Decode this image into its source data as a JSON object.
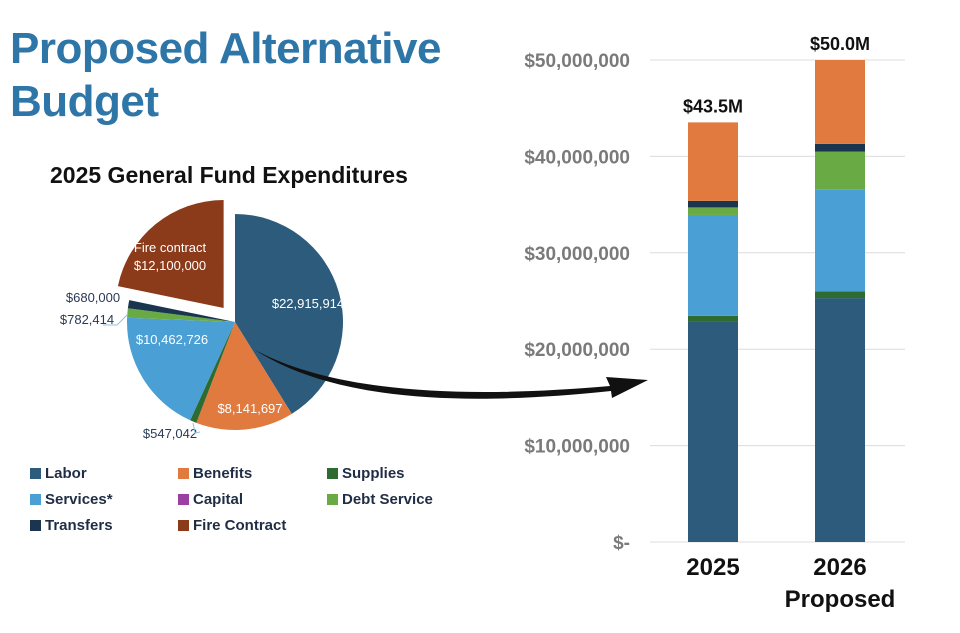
{
  "title_line1": "Proposed Alternative",
  "title_line2": "Budget",
  "chart_data": [
    {
      "type": "pie",
      "title": "2025 General Fund Expenditures",
      "slices": [
        {
          "name": "Labor",
          "value": 22915914,
          "label": "$22,915,914",
          "color": "#2c5b7c"
        },
        {
          "name": "Benefits",
          "value": 8141697,
          "label": "$8,141,697",
          "color": "#e07a3f"
        },
        {
          "name": "Supplies",
          "value": 547042,
          "label": "$547,042",
          "color": "#2e6b30"
        },
        {
          "name": "Services*",
          "value": 10462726,
          "label": "$10,462,726",
          "color": "#4a9fd5"
        },
        {
          "name": "Capital",
          "value": 0,
          "label": "",
          "color": "#9b3fa0"
        },
        {
          "name": "Debt Service",
          "value": 782414,
          "label": "$782,414",
          "color": "#6aaa45"
        },
        {
          "name": "Transfers",
          "value": 680000,
          "label": "$680,000",
          "color": "#1a3550"
        },
        {
          "name": "Fire Contract",
          "value": 12100000,
          "label": "$12,100,000",
          "label_prefix": "Fire contract",
          "color": "#8b3a1a",
          "exploded": true
        }
      ],
      "legend": [
        "Labor",
        "Benefits",
        "Supplies",
        "Services*",
        "Capital",
        "Debt Service",
        "Transfers",
        "Fire Contract"
      ]
    },
    {
      "type": "bar",
      "stacked": true,
      "categories": [
        "2025",
        "2026 Proposed"
      ],
      "category_lines": [
        [
          "2025"
        ],
        [
          "2026",
          "Proposed"
        ]
      ],
      "totals_labels": [
        "$43.5M",
        "$50.0M"
      ],
      "ylim": [
        0,
        50000000
      ],
      "yticks": [
        0,
        10000000,
        20000000,
        30000000,
        40000000,
        50000000
      ],
      "ytick_labels": [
        "$-",
        "$10,000,000",
        "$20,000,000",
        "$30,000,000",
        "$40,000,000",
        "$50,000,000"
      ],
      "grid": true,
      "series": [
        {
          "name": "Labor",
          "color": "#2c5b7c",
          "values": [
            22915914,
            25300000
          ]
        },
        {
          "name": "Supplies",
          "color": "#2e6b30",
          "values": [
            547042,
            700000
          ]
        },
        {
          "name": "Services*",
          "color": "#4a9fd5",
          "values": [
            10462726,
            10600000
          ]
        },
        {
          "name": "Debt Service",
          "color": "#6aaa45",
          "values": [
            782414,
            3900000
          ]
        },
        {
          "name": "Transfers",
          "color": "#1a3550",
          "values": [
            680000,
            800000
          ]
        },
        {
          "name": "Benefits",
          "color": "#e07a3f",
          "values": [
            8141697,
            8700000
          ]
        }
      ]
    }
  ]
}
